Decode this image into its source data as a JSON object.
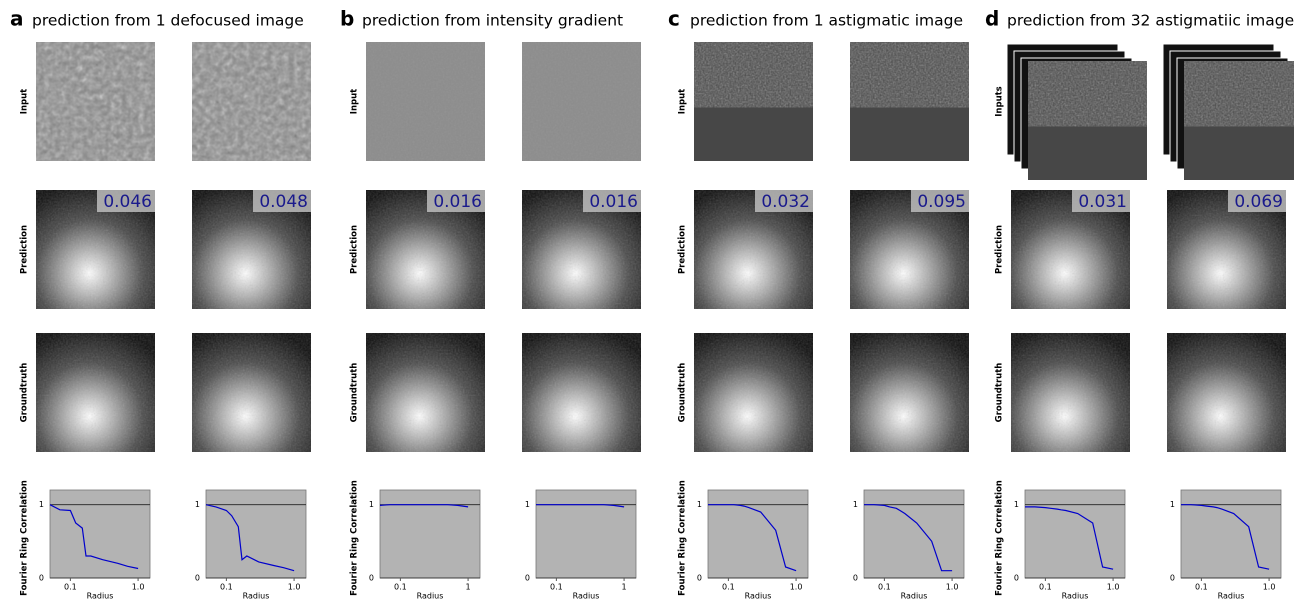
{
  "panels": [
    {
      "letter": "a",
      "title": "prediction from 1 defocused image",
      "row_labels": [
        "Input",
        "Prediction",
        "Groundtruth"
      ],
      "errors": [
        "0.046",
        "0.048"
      ]
    },
    {
      "letter": "b",
      "title": "prediction from intensity gradient",
      "row_labels": [
        "Input",
        "Prediction",
        "Groundtruth"
      ],
      "errors": [
        "0.016",
        "0.016"
      ]
    },
    {
      "letter": "c",
      "title": "prediction from 1 astigmatic image",
      "row_labels": [
        "Input",
        "Prediction",
        "Groundtruth"
      ],
      "errors": [
        "0.032",
        "0.095"
      ]
    },
    {
      "letter": "d",
      "title": "prediction from 32 astigmatiic images",
      "row_labels": [
        "Inputs",
        "Prediction",
        "Groundtruth"
      ],
      "errors": [
        "0.031",
        "0.069"
      ]
    }
  ],
  "chart_data": [
    {
      "type": "line",
      "ylabel": "Fourier Ring Correlation",
      "xlabel": "Radius",
      "log_x": true,
      "x": [
        0.05,
        0.07,
        0.1,
        0.12,
        0.15,
        0.17,
        0.2,
        0.3,
        0.5,
        0.7,
        1.0
      ],
      "series": [
        {
          "color": "#0000cc",
          "values": [
            1,
            0.93,
            0.92,
            0.75,
            0.68,
            0.3,
            0.3,
            0.25,
            0.2,
            0.16,
            0.13
          ]
        }
      ],
      "xlim": [
        0.05,
        1.5
      ],
      "ylim": [
        0,
        1.2
      ],
      "xticks": [
        0.1,
        {
          "value": 1,
          "label": "1.0"
        }
      ],
      "yticks": [
        0,
        1
      ]
    },
    {
      "type": "line",
      "xlabel": "Radius",
      "log_x": true,
      "x": [
        0.05,
        0.07,
        0.1,
        0.12,
        0.15,
        0.17,
        0.2,
        0.3,
        0.5,
        0.7,
        1.0
      ],
      "series": [
        {
          "color": "#0000cc",
          "values": [
            1,
            0.97,
            0.92,
            0.85,
            0.7,
            0.25,
            0.3,
            0.22,
            0.17,
            0.14,
            0.1
          ]
        }
      ],
      "xlim": [
        0.05,
        1.5
      ],
      "ylim": [
        0,
        1.2
      ],
      "xticks": [
        0.1,
        {
          "value": 1,
          "label": "1.0"
        }
      ],
      "yticks": [
        0,
        1
      ]
    },
    {
      "type": "line",
      "ylabel": "Fourier Ring Correlation",
      "xlabel": "Radius",
      "log_x": true,
      "x": [
        0.05,
        0.07,
        0.1,
        0.12,
        0.15,
        0.17,
        0.2,
        0.3,
        0.5,
        0.7,
        1.0
      ],
      "series": [
        {
          "color": "#0000cc",
          "values": [
            0.99,
            1,
            1,
            1,
            1,
            1,
            1,
            1,
            1,
            0.99,
            0.97
          ]
        }
      ],
      "xlim": [
        0.05,
        1.5
      ],
      "ylim": [
        0,
        1.2
      ],
      "xticks": [
        0.1,
        1
      ],
      "yticks": [
        0,
        1
      ]
    },
    {
      "type": "line",
      "xlabel": "Radius",
      "log_x": true,
      "x": [
        0.05,
        0.07,
        0.1,
        0.12,
        0.15,
        0.17,
        0.2,
        0.3,
        0.5,
        0.7,
        1.0
      ],
      "series": [
        {
          "color": "#0000cc",
          "values": [
            1,
            1,
            1,
            1,
            1,
            1,
            1,
            1,
            1,
            0.99,
            0.97
          ]
        }
      ],
      "xlim": [
        0.05,
        1.5
      ],
      "ylim": [
        0,
        1.2
      ],
      "xticks": [
        0.1,
        1
      ],
      "yticks": [
        0,
        1
      ]
    },
    {
      "type": "line",
      "ylabel": "Fourier Ring Correlation",
      "xlabel": "Radius",
      "log_x": true,
      "x": [
        0.05,
        0.07,
        0.1,
        0.12,
        0.15,
        0.17,
        0.2,
        0.3,
        0.5,
        0.7,
        1.0
      ],
      "series": [
        {
          "color": "#0000cc",
          "values": [
            1,
            1,
            1,
            1,
            0.99,
            0.98,
            0.96,
            0.9,
            0.65,
            0.15,
            0.1
          ]
        }
      ],
      "xlim": [
        0.05,
        1.5
      ],
      "ylim": [
        0,
        1.2
      ],
      "xticks": [
        0.1,
        {
          "value": 1,
          "label": "1.0"
        }
      ],
      "yticks": [
        0,
        1
      ]
    },
    {
      "type": "line",
      "xlabel": "Radius",
      "log_x": true,
      "x": [
        0.05,
        0.07,
        0.1,
        0.12,
        0.15,
        0.17,
        0.2,
        0.3,
        0.5,
        0.7,
        1.0
      ],
      "series": [
        {
          "color": "#0000cc",
          "values": [
            1,
            1,
            0.99,
            0.97,
            0.95,
            0.92,
            0.88,
            0.75,
            0.5,
            0.1,
            0.1
          ]
        }
      ],
      "xlim": [
        0.05,
        1.5
      ],
      "ylim": [
        0,
        1.2
      ],
      "xticks": [
        0.1,
        {
          "value": 1,
          "label": "1.0"
        }
      ],
      "yticks": [
        0,
        1
      ]
    },
    {
      "type": "line",
      "ylabel": "Fourier Ring Correlation",
      "xlabel": "Radius",
      "log_x": true,
      "x": [
        0.05,
        0.07,
        0.1,
        0.12,
        0.15,
        0.17,
        0.2,
        0.3,
        0.5,
        0.7,
        1.0
      ],
      "series": [
        {
          "color": "#0000cc",
          "values": [
            0.97,
            0.97,
            0.96,
            0.95,
            0.94,
            0.93,
            0.92,
            0.88,
            0.75,
            0.15,
            0.12
          ]
        }
      ],
      "xlim": [
        0.05,
        1.5
      ],
      "ylim": [
        0,
        1.2
      ],
      "xticks": [
        0.1,
        {
          "value": 1,
          "label": "1.0"
        }
      ],
      "yticks": [
        0,
        1
      ]
    },
    {
      "type": "line",
      "xlabel": "Radius",
      "log_x": true,
      "x": [
        0.05,
        0.07,
        0.1,
        0.12,
        0.15,
        0.17,
        0.2,
        0.3,
        0.5,
        0.7,
        1.0
      ],
      "series": [
        {
          "color": "#0000cc",
          "values": [
            1,
            1,
            0.99,
            0.98,
            0.97,
            0.96,
            0.94,
            0.88,
            0.7,
            0.15,
            0.12
          ]
        }
      ],
      "xlim": [
        0.05,
        1.5
      ],
      "ylim": [
        0,
        1.2
      ],
      "xticks": [
        0.1,
        {
          "value": 1,
          "label": "1.0"
        }
      ],
      "yticks": [
        0,
        1
      ]
    }
  ]
}
